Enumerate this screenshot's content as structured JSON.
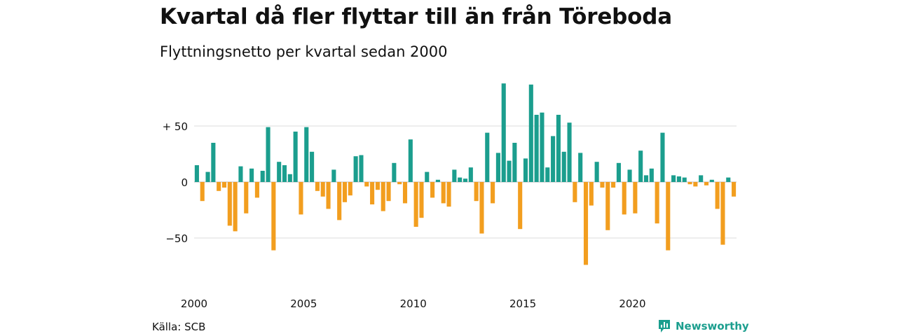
{
  "title": "Kvartal då fler flyttar till än från Töreboda",
  "subtitle": "Flyttningsnetto per kvartal sedan 2000",
  "source": "Källa: SCB",
  "brand": "Newsworthy",
  "colors": {
    "positive": "#1b9e8e",
    "negative": "#f29e1f",
    "grid": "#dddddd",
    "text": "#111111"
  },
  "chart_data": {
    "type": "bar",
    "title": "Kvartal då fler flyttar till än från Töreboda",
    "subtitle": "Flyttningsnetto per kvartal sedan 2000",
    "start": "2000 Q1",
    "frequency": "quarterly",
    "x_tick_labels": [
      "2000",
      "2005",
      "2010",
      "2015",
      "2020"
    ],
    "y_ticks": [
      50,
      0,
      -50
    ],
    "y_tick_labels": [
      "+ 50",
      "0",
      "−50"
    ],
    "ylim": [
      -80,
      90
    ],
    "grid": true,
    "values": [
      15,
      -17,
      9,
      35,
      -8,
      -5,
      -39,
      -44,
      14,
      -28,
      12,
      -14,
      10,
      49,
      -61,
      18,
      15,
      7,
      45,
      -29,
      49,
      27,
      -8,
      -13,
      -24,
      11,
      -34,
      -18,
      -12,
      23,
      24,
      -4,
      -20,
      -7,
      -26,
      -17,
      17,
      -2,
      -19,
      38,
      -40,
      -32,
      9,
      -14,
      2,
      -19,
      -22,
      11,
      4,
      3,
      13,
      -17,
      -46,
      44,
      -19,
      26,
      88,
      19,
      35,
      -42,
      21,
      87,
      60,
      62,
      13,
      41,
      60,
      27,
      53,
      -18,
      26,
      -74,
      -21,
      18,
      -5,
      -43,
      -5,
      17,
      -29,
      11,
      -28,
      28,
      6,
      12,
      -37,
      44,
      -61,
      6,
      5,
      4,
      -2,
      -4,
      6,
      -3,
      2,
      -24,
      -56,
      4,
      -13
    ]
  }
}
